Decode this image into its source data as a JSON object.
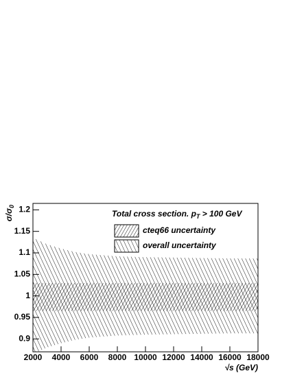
{
  "chart_data": {
    "type": "band",
    "title": {
      "text": "Total cross section. p",
      "subscript": "T",
      "suffix": " > 100 GeV"
    },
    "xlabel": "√s (GeV)",
    "ylabel": {
      "text": "σ/σ",
      "subscript": "0"
    },
    "xlim": [
      2000,
      18000
    ],
    "xticks": [
      2000,
      4000,
      6000,
      8000,
      10000,
      12000,
      14000,
      16000,
      18000
    ],
    "ylim": [
      0.87,
      1.215
    ],
    "yticks": [
      0.9,
      0.95,
      1,
      1.05,
      1.1,
      1.15,
      1.2
    ],
    "series": [
      {
        "name": "overall uncertainty",
        "color": "#000000",
        "hatch": "backslash",
        "x": [
          2000,
          3000,
          4000,
          5000,
          6000,
          8000,
          10000,
          12000,
          14000,
          16000,
          18000
        ],
        "upper": [
          1.135,
          1.12,
          1.11,
          1.102,
          1.097,
          1.092,
          1.09,
          1.089,
          1.088,
          1.087,
          1.087
        ],
        "lower": [
          0.865,
          0.88,
          0.89,
          0.898,
          0.903,
          0.908,
          0.91,
          0.911,
          0.912,
          0.913,
          0.913
        ]
      },
      {
        "name": "cteq66 uncertainty",
        "color": "#000000",
        "hatch": "slash",
        "x": [
          2000,
          3000,
          4000,
          5000,
          6000,
          8000,
          10000,
          12000,
          14000,
          16000,
          18000
        ],
        "upper": [
          1.03,
          1.03,
          1.03,
          1.03,
          1.03,
          1.03,
          1.03,
          1.03,
          1.03,
          1.03,
          1.03
        ],
        "lower": [
          0.965,
          0.965,
          0.965,
          0.965,
          0.965,
          0.965,
          0.965,
          0.965,
          0.965,
          0.965,
          0.965
        ]
      }
    ]
  }
}
